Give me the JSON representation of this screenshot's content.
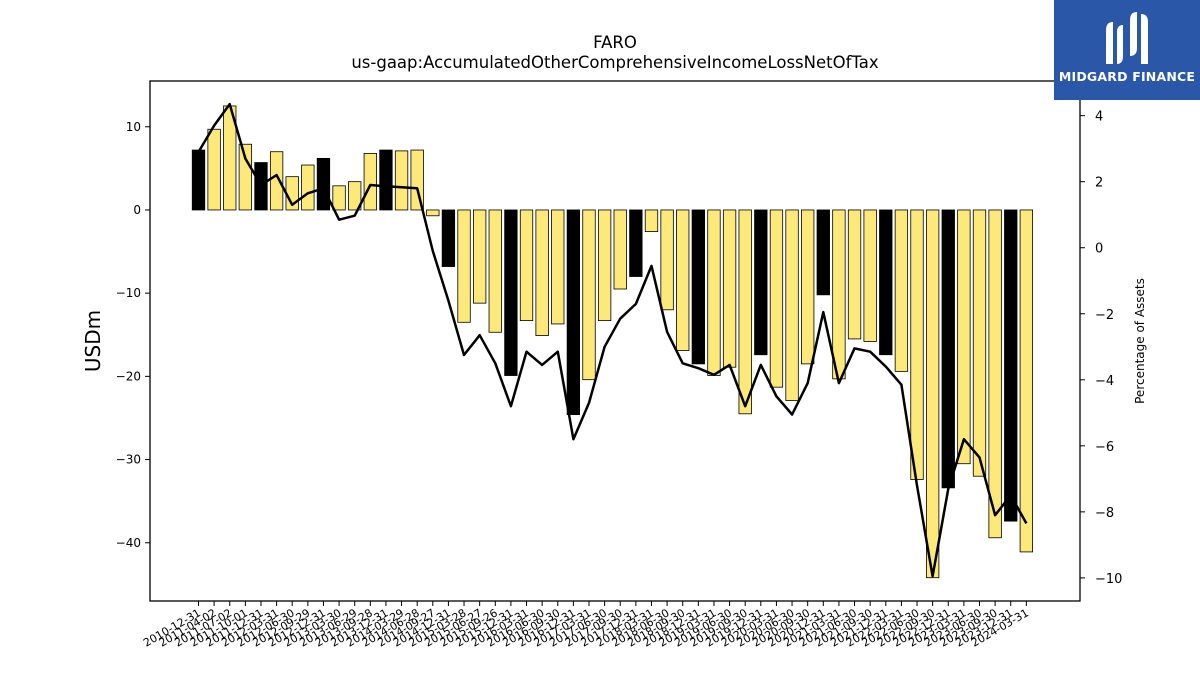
{
  "chart_data": {
    "type": "bar",
    "title": "FARO",
    "subtitle": "us-gaap:AccumulatedOtherComprehensiveIncomeLossNetOfTax",
    "ylabel": "USDm",
    "y2label": "Percentage of Assets",
    "ylim": [
      -47,
      15.5
    ],
    "y2lim": [
      -10.7,
      5.05
    ],
    "yticks": [
      10,
      0,
      -10,
      -20,
      -30,
      -40
    ],
    "y2ticks": [
      4,
      2,
      0,
      -2,
      -4,
      -6,
      -8,
      -10
    ],
    "categories": [
      "2010-12-31",
      "2011-04-02",
      "2011-07-02",
      "2011-10-01",
      "2011-12-31",
      "2012-03-31",
      "2012-06-30",
      "2012-09-29",
      "2012-12-31",
      "2013-03-30",
      "2013-06-29",
      "2013-09-28",
      "2013-12-31",
      "2014-03-29",
      "2014-06-28",
      "2014-09-27",
      "2014-12-31",
      "2015-03-28",
      "2015-06-27",
      "2015-09-26",
      "2015-12-31",
      "2016-03-31",
      "2016-06-30",
      "2016-09-30",
      "2016-12-31",
      "2017-03-31",
      "2017-06-30",
      "2017-09-30",
      "2017-12-31",
      "2018-03-31",
      "2018-06-30",
      "2018-09-30",
      "2018-12-31",
      "2019-03-31",
      "2019-06-30",
      "2019-09-30",
      "2019-12-31",
      "2020-03-31",
      "2020-06-30",
      "2020-09-30",
      "2020-12-31",
      "2021-03-31",
      "2021-06-30",
      "2021-09-30",
      "2021-12-31",
      "2022-03-31",
      "2022-06-30",
      "2022-09-30",
      "2022-12-31",
      "2023-03-31",
      "2023-06-30",
      "2023-09-30",
      "2023-12-31",
      "2024-03-31"
    ],
    "tick_labels": [
      "2010-12-31",
      "2011-04-02",
      "2011-07-02",
      "2011-10-01",
      "2011-12-31",
      "2012-03-31",
      "2012-06-30",
      "2012-09-29",
      "2012-12-31",
      "2013-03-30",
      "2013-06-29",
      "2013-09-28",
      "2013-12-31",
      "2014-03-29",
      "2014-06-28",
      "2014-09-27",
      "2014-12-31",
      "2015-03-28",
      "2015-06-27",
      "2015-09-26",
      "2015-12-31",
      "2016-03-31",
      "2016-06-30",
      "2016-09-30",
      "2016-12-31",
      "2017-03-31",
      "2017-06-30",
      "2017-09-30",
      "2017-12-31",
      "2018-03-31",
      "2018-06-30",
      "2018-09-30",
      "2018-12-31",
      "2019-03-31",
      "2019-06-30",
      "2019-09-30",
      "2019-12-31",
      "2020-03-31",
      "2020-06-30",
      "2020-09-30",
      "2020-12-31",
      "2021-03-31",
      "2021-06-30",
      "2021-09-30",
      "2021-12-31",
      "2022-03-31",
      "2022-06-30",
      "2022-09-30",
      "2022-12-31",
      "2023-03-31",
      "2023-06-30",
      "2023-09-30",
      "2023-12-31",
      "2024-03-31"
    ],
    "bars_usdm": [
      7.2,
      9.7,
      12.5,
      7.9,
      5.7,
      7.0,
      4.0,
      5.4,
      6.2,
      2.9,
      3.4,
      6.8,
      7.2,
      7.1,
      7.2,
      -0.7,
      -6.8,
      -13.5,
      -11.2,
      -14.7,
      -19.9,
      -13.3,
      -15.1,
      -13.7,
      -24.6,
      -20.4,
      -13.3,
      -9.5,
      -8.0,
      -2.6,
      -12.0,
      -16.9,
      -18.5,
      -19.9,
      -18.9,
      -24.5,
      -17.4,
      -21.3,
      -22.9,
      -18.5,
      -10.2,
      -20.3,
      -15.5,
      -15.8,
      -17.4,
      -19.4,
      -32.4,
      -44.2,
      -33.4,
      -30.5,
      -32.0,
      -39.4,
      -37.4,
      -41.1
    ],
    "bar_highlight": [
      true,
      false,
      false,
      false,
      true,
      false,
      false,
      false,
      true,
      false,
      false,
      false,
      true,
      false,
      false,
      false,
      true,
      false,
      false,
      false,
      true,
      false,
      false,
      false,
      true,
      false,
      false,
      false,
      true,
      false,
      false,
      false,
      true,
      false,
      false,
      false,
      true,
      false,
      false,
      false,
      true,
      false,
      false,
      false,
      true,
      false,
      false,
      false,
      true,
      false,
      false,
      false,
      true,
      false
    ],
    "pct_of_assets": [
      2.9,
      3.7,
      4.35,
      2.7,
      1.9,
      2.2,
      1.3,
      1.65,
      1.8,
      0.85,
      0.97,
      1.9,
      1.86,
      1.83,
      1.8,
      -0.1,
      -1.6,
      -3.25,
      -2.65,
      -3.5,
      -4.8,
      -3.15,
      -3.55,
      -3.15,
      -5.8,
      -4.7,
      -3.0,
      -2.15,
      -1.7,
      -0.55,
      -2.55,
      -3.5,
      -3.65,
      -3.85,
      -3.55,
      -4.8,
      -3.55,
      -4.5,
      -5.05,
      -4.1,
      -1.95,
      -4.1,
      -3.05,
      -3.15,
      -3.6,
      -4.15,
      -7.2,
      -9.95,
      -7.3,
      -5.8,
      -6.35,
      -8.1,
      -7.5,
      -8.35
    ],
    "colors": {
      "bar_fill": "#fde97a",
      "bar_highlight": "#000000",
      "bar_edge": "#000000",
      "line": "#000000",
      "logo_bg": "#2b57a8"
    }
  },
  "logo": {
    "icon": "midgard-logo-mark-icon",
    "text": "MIDGARD FINANCE"
  }
}
